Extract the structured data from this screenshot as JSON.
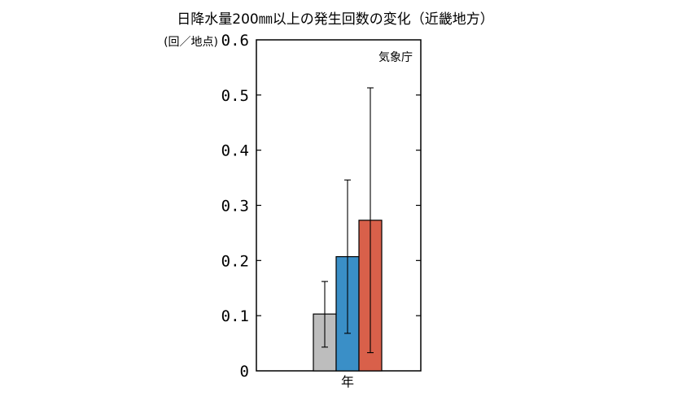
{
  "chart_data": {
    "type": "bar",
    "title": "日降水量200㎜以上の発生回数の変化（近畿地方）",
    "ylabel": "(回／地点)",
    "source_note": "気象庁",
    "categories": [
      "年"
    ],
    "ylim": [
      0,
      0.6
    ],
    "yticks": [
      0,
      0.1,
      0.2,
      0.3,
      0.4,
      0.5,
      0.6
    ],
    "ytick_labels": [
      "0",
      "0.1",
      "0.2",
      "0.3",
      "0.4",
      "0.5",
      "0.6"
    ],
    "grid": false,
    "series": [
      {
        "values": [
          0.103
        ],
        "err_low": [
          0.043
        ],
        "err_high": [
          0.162
        ],
        "color": "#bdbdbd"
      },
      {
        "values": [
          0.207
        ],
        "err_low": [
          0.068
        ],
        "err_high": [
          0.346
        ],
        "color": "#3a8fc7"
      },
      {
        "values": [
          0.273
        ],
        "err_low": [
          0.033
        ],
        "err_high": [
          0.513
        ],
        "color": "#d9604a"
      }
    ]
  }
}
